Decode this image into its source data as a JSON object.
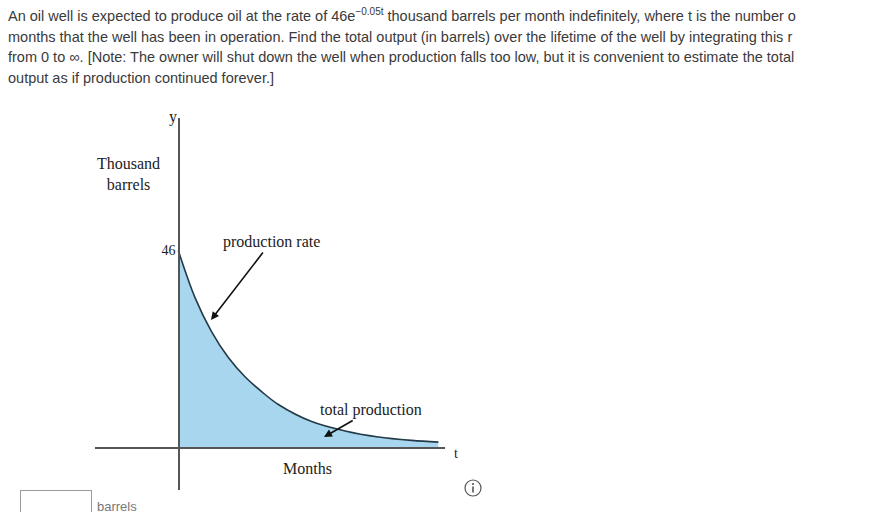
{
  "question": {
    "lines": [
      {
        "before": "An oil well is expected to produce oil at the rate of 46e",
        "exponent": "−0.05t",
        "after": " thousand barrels per month indefinitely, where t is the number o"
      },
      {
        "before": "months that the well has been in operation. Find the total output (in barrels) over the lifetime of the well by integrating this r"
      },
      {
        "before": "from 0 to ∞. [Note: The owner will shut down the well when production falls too low, but it is convenient to estimate the total"
      },
      {
        "before": "output as if production continued forever.]"
      }
    ]
  },
  "chart_data": {
    "type": "area",
    "x": [
      0,
      5,
      10,
      15,
      20,
      25,
      30,
      40,
      50,
      60,
      70,
      78
    ],
    "values": [
      46,
      35,
      27,
      21,
      16.5,
      13,
      10,
      6,
      3.8,
      2.4,
      1.6,
      1.2
    ],
    "color": "#a9d6ef",
    "xlim": [
      -25,
      80
    ],
    "ylim": [
      -10,
      77
    ],
    "xticks": [],
    "yticks": [
      46
    ],
    "x_label": "Months",
    "y_label": [
      "Thousand",
      "barrels"
    ],
    "x_axis_name": "t",
    "y_axis_name": "y",
    "annotations": [
      {
        "text": "production rate"
      },
      {
        "text": "total production"
      }
    ],
    "grid": false
  },
  "answer": {
    "unit": "barrels"
  }
}
